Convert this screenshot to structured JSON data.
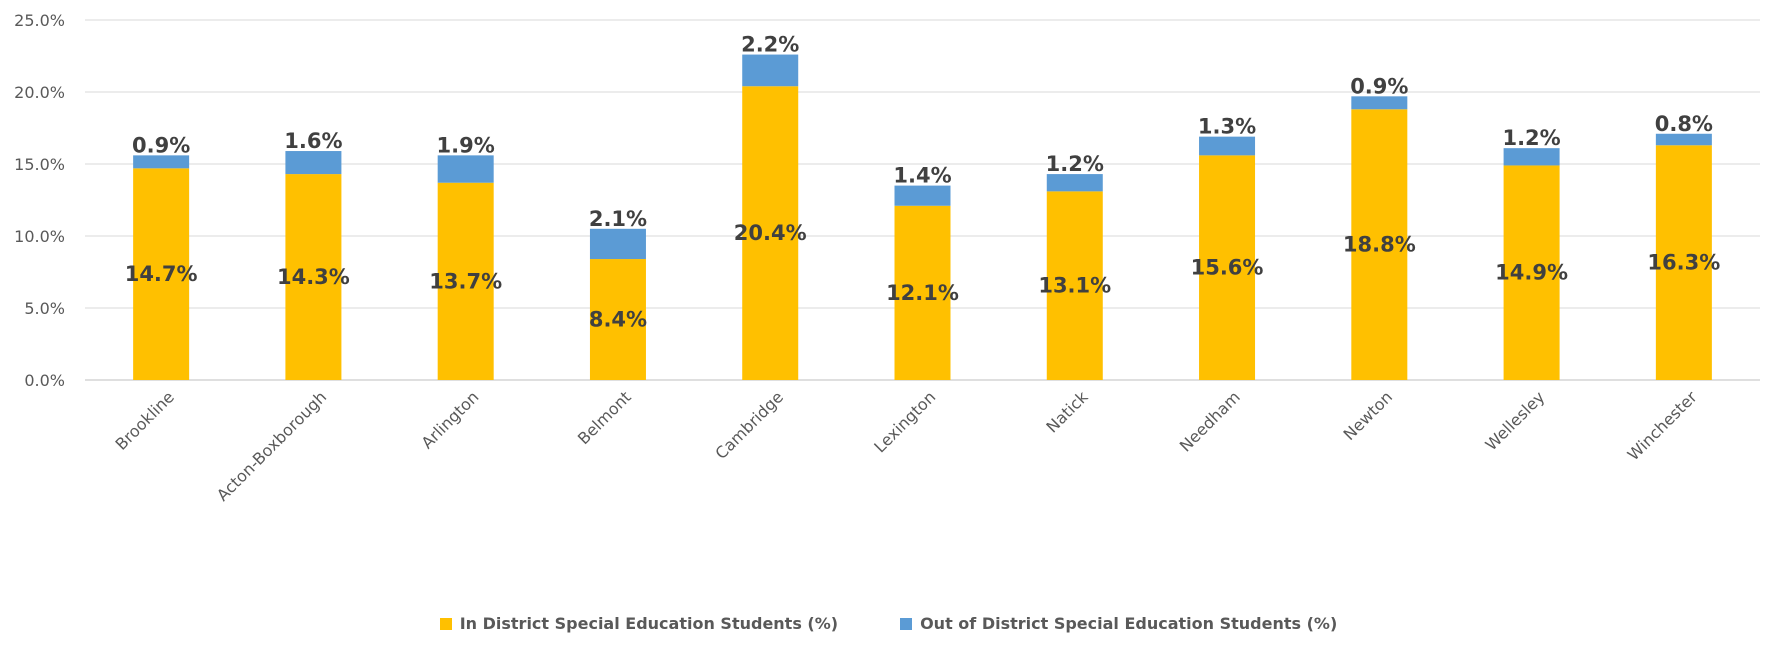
{
  "chart_data": {
    "type": "bar",
    "stacked": true,
    "categories": [
      "Brookline",
      "Acton-Boxborough",
      "Arlington",
      "Belmont",
      "Cambridge",
      "Lexington",
      "Natick",
      "Needham",
      "Newton",
      "Wellesley",
      "Winchester"
    ],
    "series": [
      {
        "name": "In District Special Education Students (%)",
        "color": "#FFC000",
        "values": [
          14.7,
          14.3,
          13.7,
          8.4,
          20.4,
          12.1,
          13.1,
          15.6,
          18.8,
          14.9,
          16.3
        ],
        "labels": [
          "14.7%",
          "14.3%",
          "13.7%",
          "8.4%",
          "20.4%",
          "12.1%",
          "13.1%",
          "15.6%",
          "18.8%",
          "14.9%",
          "16.3%"
        ]
      },
      {
        "name": "Out of District Special Education Students (%)",
        "color": "#5B9BD5",
        "values": [
          0.9,
          1.6,
          1.9,
          2.1,
          2.2,
          1.4,
          1.2,
          1.3,
          0.9,
          1.2,
          0.8
        ],
        "labels": [
          "0.9%",
          "1.6%",
          "1.9%",
          "2.1%",
          "2.2%",
          "1.4%",
          "1.2%",
          "1.3%",
          "0.9%",
          "1.2%",
          "0.8%"
        ]
      }
    ],
    "ylim": [
      0,
      25
    ],
    "yticks": [
      "0.0%",
      "5.0%",
      "10.0%",
      "15.0%",
      "20.0%",
      "25.0%"
    ],
    "ytick_values": [
      0,
      5,
      10,
      15,
      20,
      25
    ],
    "grid": true,
    "legend_position": "bottom",
    "xlabel": "",
    "ylabel": "",
    "title": ""
  }
}
